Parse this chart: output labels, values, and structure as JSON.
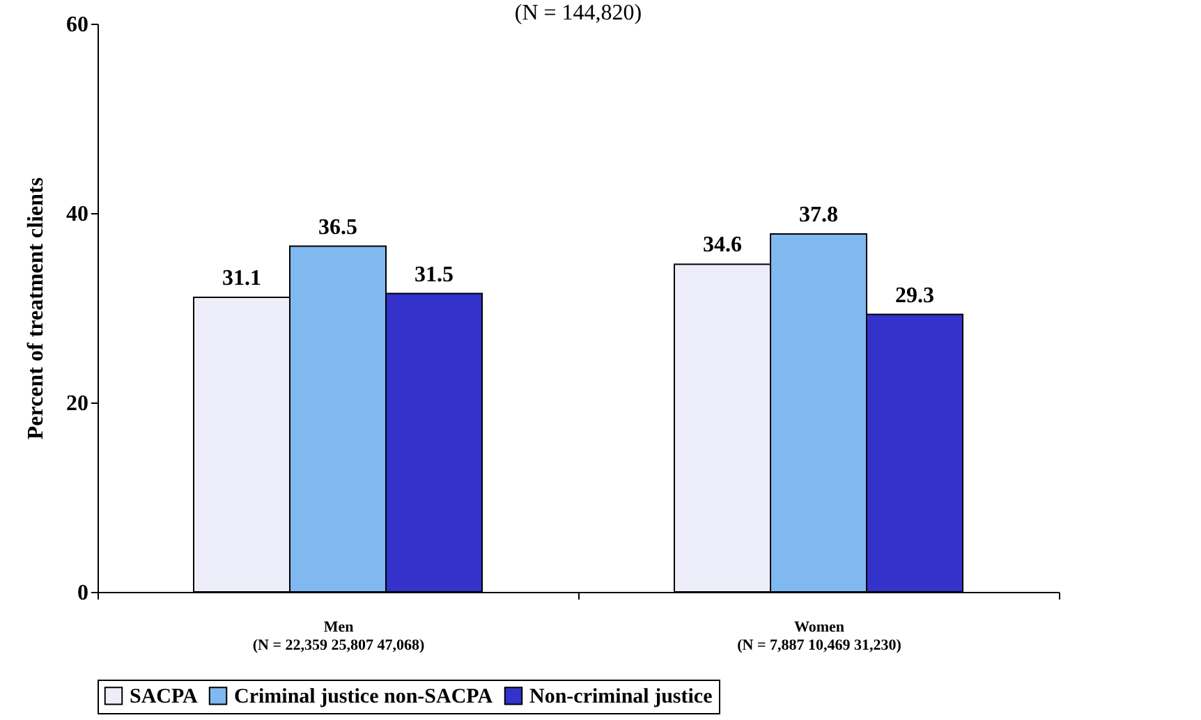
{
  "chart_data": {
    "type": "bar",
    "title": "(N = 144,820)",
    "ylabel": "Percent of treatment clients",
    "categories": [
      "Men\n(N = 22,359 25,807 47,068)",
      "Women\n(N = 7,887 10,469 31,230)"
    ],
    "series": [
      {
        "name": "SACPA",
        "color": "#eeeefa",
        "values": [
          31.1,
          34.6
        ]
      },
      {
        "name": "Criminal justice non-SACPA",
        "color": "#80b8f0",
        "values": [
          36.5,
          37.8
        ]
      },
      {
        "name": "Non-criminal justice",
        "color": "#3333cc",
        "values": [
          31.5,
          29.3
        ]
      }
    ],
    "ylim": [
      0,
      60
    ],
    "yticks": [
      0,
      20,
      40,
      60
    ],
    "grid": false,
    "legend": "bottom",
    "data_labels": true
  }
}
